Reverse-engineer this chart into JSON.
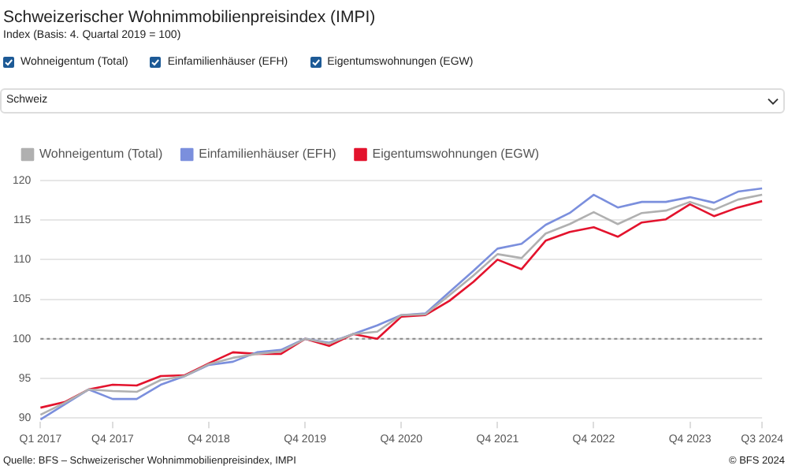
{
  "chart_data": {
    "type": "line",
    "title": "Schweizerischer Wohnimmobilienpreisindex (IMPI)",
    "subtitle": "Index (Basis: 4. Quartal 2019 = 100)",
    "categories": [
      "Q1 2017",
      null,
      null,
      "Q4 2017",
      null,
      null,
      null,
      "Q4 2018",
      null,
      null,
      null,
      "Q4 2019",
      null,
      null,
      null,
      "Q4 2020",
      null,
      null,
      null,
      "Q4 2021",
      null,
      null,
      null,
      "Q4 2022",
      null,
      null,
      null,
      "Q4 2023",
      null,
      null,
      "Q3 2024"
    ],
    "series": [
      {
        "name": "Wohneigentum (Total)",
        "color": "#b0b0b0",
        "values": [
          90.4,
          91.9,
          93.6,
          93.4,
          93.3,
          94.8,
          95.3,
          96.8,
          97.6,
          98.1,
          98.4,
          100,
          99.4,
          100.6,
          100.9,
          103.0,
          103.1,
          105.5,
          108.0,
          110.7,
          110.2,
          113.3,
          114.5,
          116.0,
          114.5,
          115.9,
          116.2,
          117.3,
          116.3,
          117.6,
          118.2
        ]
      },
      {
        "name": "Einfamilienhäuser (EFH)",
        "color": "#7b8fdd",
        "values": [
          89.8,
          91.7,
          93.6,
          92.4,
          92.4,
          94.2,
          95.3,
          96.7,
          97.1,
          98.3,
          98.6,
          100,
          99.5,
          100.6,
          101.7,
          103.0,
          103.2,
          105.9,
          108.6,
          111.4,
          112.0,
          114.4,
          115.9,
          118.2,
          116.6,
          117.3,
          117.3,
          117.9,
          117.2,
          118.6,
          119.0
        ]
      },
      {
        "name": "Eigentumswohnungen (EGW)",
        "color": "#e3132d",
        "values": [
          91.3,
          92.0,
          93.6,
          94.2,
          94.1,
          95.3,
          95.4,
          96.9,
          98.3,
          98.1,
          98.1,
          100,
          99.1,
          100.6,
          100.0,
          102.8,
          103.0,
          104.8,
          107.2,
          110.0,
          108.8,
          112.4,
          113.5,
          114.1,
          112.9,
          114.7,
          115.1,
          117.0,
          115.5,
          116.6,
          117.4
        ]
      }
    ],
    "ylim": [
      89.5,
      120.5
    ],
    "yticks": [
      90,
      95,
      100,
      105,
      110,
      115,
      120
    ],
    "grid": "y",
    "legend": "top left",
    "marker": "none",
    "line_style": "solid",
    "ref_lines": [
      {
        "axis": "y",
        "value": 100,
        "color": "#888888",
        "line_style": "dotted"
      }
    ],
    "annotations": [
      "Schweiz",
      "Quelle: BFS – Schweizerischer Wohnimmobilienpreisindex, IMPI",
      "© BFS 2024"
    ]
  }
}
